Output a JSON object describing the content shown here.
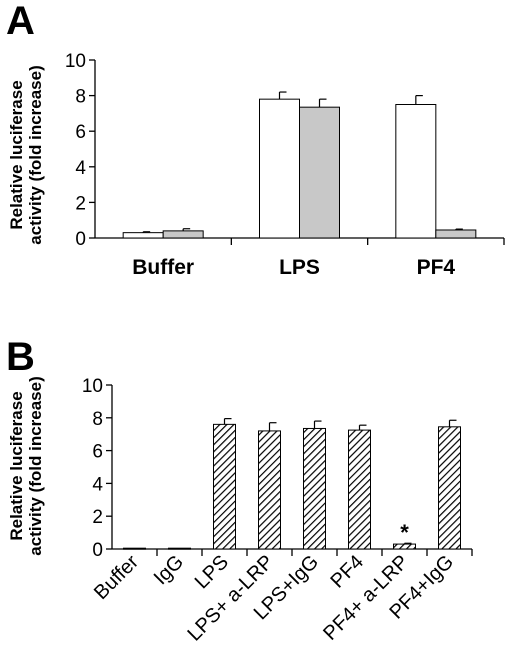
{
  "chart_data": [
    {
      "panel_label": "A",
      "type": "bar",
      "categories": [
        "Buffer",
        "LPS",
        "PF4"
      ],
      "series": [
        {
          "fill": "white",
          "values": [
            0.3,
            7.8,
            7.5
          ],
          "errors": [
            0.05,
            0.4,
            0.5
          ]
        },
        {
          "fill": "gray",
          "values": [
            0.4,
            7.35,
            0.45
          ],
          "errors": [
            0.12,
            0.45,
            0.05
          ]
        }
      ],
      "ylabel_line1": "Relative luciferase",
      "ylabel_line2": "activity (fold increase)",
      "ylim": [
        0,
        10
      ],
      "yticks": [
        "0",
        "2",
        "4",
        "6",
        "8",
        "10"
      ],
      "grid": false,
      "colors": {
        "series1": "#ffffff",
        "series2": "#c8c8c8",
        "axis": "#000000"
      }
    },
    {
      "panel_label": "B",
      "type": "bar",
      "categories": [
        "Buffer",
        "IgG",
        "LPS",
        "LPS+ a-LRP",
        "LPS+IgG",
        "PF4",
        "PF4+ a-LRP",
        "PF4+IgG"
      ],
      "series": [
        {
          "fill": "hatched",
          "values": [
            0.05,
            0.05,
            7.6,
            7.2,
            7.35,
            7.25,
            0.3,
            7.45
          ],
          "errors": [
            0,
            0,
            0.35,
            0.5,
            0.45,
            0.3,
            0.05,
            0.4
          ]
        }
      ],
      "annotation": {
        "category": "PF4+ a-LRP",
        "text": "*"
      },
      "ylabel_line1": "Relative luciferase",
      "ylabel_line2": "activity (fold increase)",
      "ylim": [
        0,
        10
      ],
      "yticks": [
        "0",
        "2",
        "4",
        "6",
        "8",
        "10"
      ],
      "grid": false,
      "colors": {
        "hatch": "#000000",
        "axis": "#000000"
      }
    }
  ]
}
